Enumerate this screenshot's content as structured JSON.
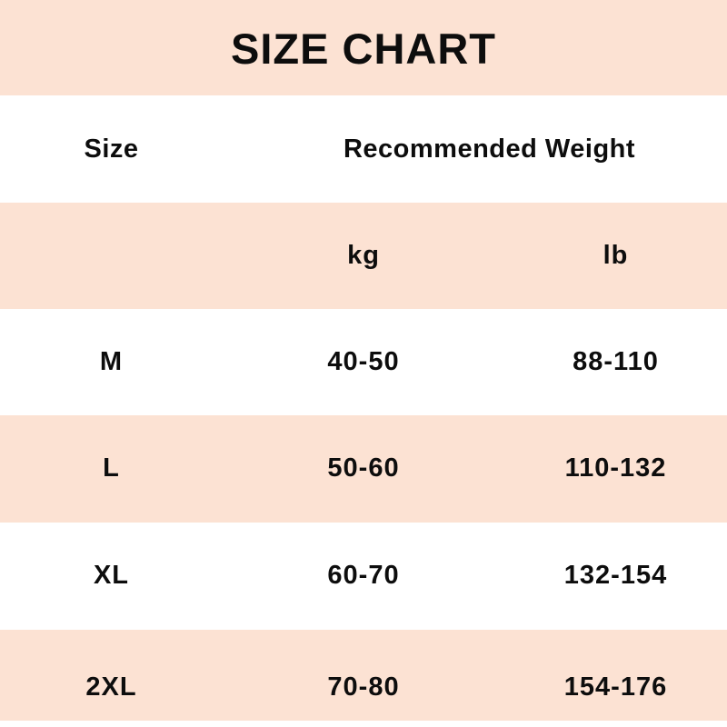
{
  "title": "SIZE CHART",
  "header": {
    "size": "Size",
    "weight": "Recommended Weight"
  },
  "units": {
    "kg": "kg",
    "lb": "lb"
  },
  "rows": [
    {
      "size": "M",
      "kg": "40-50",
      "lb": "88-110"
    },
    {
      "size": "L",
      "kg": "50-60",
      "lb": "110-132"
    },
    {
      "size": "XL",
      "kg": "60-70",
      "lb": "132-154"
    },
    {
      "size": "2XL",
      "kg": "70-80",
      "lb": "154-176"
    }
  ],
  "colors": {
    "band_peach": "#fce2d3",
    "background": "#ffffff",
    "text": "#0d0d0d"
  },
  "chart_data": {
    "type": "table",
    "title": "SIZE CHART",
    "columns": [
      "Size",
      "Recommended Weight kg",
      "Recommended Weight lb"
    ],
    "rows": [
      [
        "M",
        "40-50",
        "88-110"
      ],
      [
        "L",
        "50-60",
        "110-132"
      ],
      [
        "XL",
        "60-70",
        "132-154"
      ],
      [
        "2XL",
        "70-80",
        "154-176"
      ]
    ],
    "kg_ranges": [
      [
        40,
        50
      ],
      [
        50,
        60
      ],
      [
        60,
        70
      ],
      [
        70,
        80
      ]
    ],
    "lb_ranges": [
      [
        88,
        110
      ],
      [
        110,
        132
      ],
      [
        132,
        154
      ],
      [
        154,
        176
      ]
    ],
    "layout": "alternating white and peach row bands, bold black centered text"
  }
}
